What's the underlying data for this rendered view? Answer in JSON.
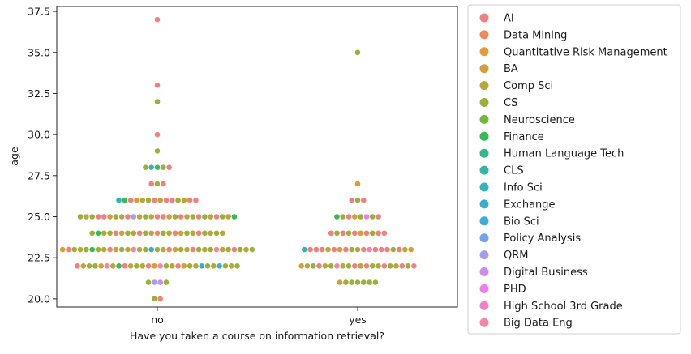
{
  "chart_data": {
    "type": "scatter",
    "subtype": "swarm",
    "xlabel": "Have you taken a course on information retrieval?",
    "ylabel": "age",
    "categories": [
      "no",
      "yes"
    ],
    "ylim": [
      19.5,
      37.8
    ],
    "yticks": [
      20.0,
      22.5,
      25.0,
      27.5,
      30.0,
      32.5,
      35.0,
      37.5
    ],
    "ytick_labels": [
      "20.0",
      "22.5",
      "25.0",
      "27.5",
      "30.0",
      "32.5",
      "35.0",
      "37.5"
    ],
    "grid": false,
    "legend_placement": "outside-right",
    "hue_levels": [
      {
        "name": "AI",
        "color": "#f0807f"
      },
      {
        "name": "Data Mining",
        "color": "#ee8a5f"
      },
      {
        "name": "Quantitative Risk Management",
        "color": "#e39a3c"
      },
      {
        "name": "BA",
        "color": "#cfa03c"
      },
      {
        "name": "Comp Sci",
        "color": "#b6a83a"
      },
      {
        "name": "CS",
        "color": "#9bb03c"
      },
      {
        "name": "Neuroscience",
        "color": "#72b83e"
      },
      {
        "name": "Finance",
        "color": "#37b957"
      },
      {
        "name": "Human Language Tech",
        "color": "#36b58e"
      },
      {
        "name": "CLS",
        "color": "#35b3a7"
      },
      {
        "name": "Info Sci",
        "color": "#37b1b8"
      },
      {
        "name": "Exchange",
        "color": "#38afc7"
      },
      {
        "name": "Bio Sci",
        "color": "#3eaad8"
      },
      {
        "name": "Policy Analysis",
        "color": "#6fa4ea"
      },
      {
        "name": "QRM",
        "color": "#a79ded"
      },
      {
        "name": "Digital Business",
        "color": "#cb8ceb"
      },
      {
        "name": "PHD",
        "color": "#ec7ee7"
      },
      {
        "name": "High School 3rd Grade",
        "color": "#f181c6"
      },
      {
        "name": "Big Data Eng",
        "color": "#f386a8"
      }
    ],
    "series": [
      {
        "category": "no",
        "points": [
          {
            "y": 20,
            "n": 2,
            "hues": [
              "CS",
              "AI"
            ]
          },
          {
            "y": 21,
            "n": 4,
            "hues": [
              "CS",
              "QRM",
              "Digital Business",
              "CS"
            ]
          },
          {
            "y": 22,
            "n": 28,
            "hues": [
              "AI",
              "Comp Sci",
              "CS",
              "CS",
              "BA",
              "Big Data Eng",
              "Comp Sci",
              "Finance",
              "AI",
              "Comp Sci",
              "CS",
              "Comp Sci",
              "AI",
              "BA",
              "Big Data Eng",
              "CS",
              "Comp Sci",
              "AI",
              "BA",
              "CS",
              "Comp Sci",
              "Exchange",
              "CS",
              "Comp Sci",
              "Bio Sci",
              "CS",
              "Comp Sci",
              "CS"
            ]
          },
          {
            "y": 23,
            "n": 33,
            "hues": [
              "BA",
              "AI",
              "CS",
              "Comp Sci",
              "CS",
              "Finance",
              "CS",
              "Comp Sci",
              "AI",
              "BA",
              "CS",
              "Comp Sci",
              "Big Data Eng",
              "Comp Sci",
              "CS",
              "Info Sci",
              "CS",
              "Comp Sci",
              "AI",
              "BA",
              "CS",
              "Comp Sci",
              "AI",
              "CS",
              "Comp Sci",
              "CS",
              "Big Data Eng",
              "Comp Sci",
              "CS",
              "AI",
              "CS",
              "Comp Sci",
              "CS"
            ]
          },
          {
            "y": 24,
            "n": 23,
            "hues": [
              "CS",
              "Finance",
              "Comp Sci",
              "CS",
              "AI",
              "BA",
              "CS",
              "Comp Sci",
              "AI",
              "CS",
              "Comp Sci",
              "Data Mining",
              "CS",
              "Comp Sci",
              "AI",
              "BA",
              "CS",
              "Comp Sci",
              "AI",
              "CS",
              "Comp Sci",
              "CS",
              "Comp Sci"
            ]
          },
          {
            "y": 25,
            "n": 27,
            "hues": [
              "CS",
              "Comp Sci",
              "CS",
              "AI",
              "AI",
              "BA",
              "CS",
              "Comp Sci",
              "AI",
              "QRM",
              "Comp Sci",
              "CS",
              "Comp Sci",
              "AI",
              "AI",
              "BA",
              "CS",
              "AI",
              "Comp Sci",
              "CS",
              "AI",
              "CS",
              "Comp Sci",
              "AI",
              "CS",
              "Comp Sci",
              "Finance"
            ]
          },
          {
            "y": 26,
            "n": 14,
            "hues": [
              "Info Sci",
              "Finance",
              "AI",
              "BA",
              "Comp Sci",
              "CS",
              "AI",
              "Comp Sci",
              "AI",
              "AI",
              "CS",
              "Comp Sci",
              "AI",
              "AI"
            ]
          },
          {
            "y": 27,
            "n": 3,
            "hues": [
              "AI",
              "CS",
              "AI"
            ]
          },
          {
            "y": 28,
            "n": 5,
            "hues": [
              "CS",
              "Info Sci",
              "Finance",
              "CS",
              "AI"
            ]
          },
          {
            "y": 29,
            "n": 1,
            "hues": [
              "CS"
            ]
          },
          {
            "y": 30,
            "n": 1,
            "hues": [
              "AI"
            ]
          },
          {
            "y": 32,
            "n": 1,
            "hues": [
              "CS"
            ]
          },
          {
            "y": 33,
            "n": 1,
            "hues": [
              "AI"
            ]
          },
          {
            "y": 37,
            "n": 1,
            "hues": [
              "AI"
            ]
          }
        ]
      },
      {
        "category": "yes",
        "points": [
          {
            "y": 21,
            "n": 7,
            "hues": [
              "BA",
              "CS",
              "CS",
              "CS",
              "CS",
              "CS",
              "CS"
            ]
          },
          {
            "y": 22,
            "n": 20,
            "hues": [
              "BA",
              "Comp Sci",
              "CS",
              "AI",
              "Comp Sci",
              "CS",
              "Big Data Eng",
              "Comp Sci",
              "CS",
              "AI",
              "Comp Sci",
              "AI",
              "CS",
              "Comp Sci",
              "AI",
              "CS",
              "Comp Sci",
              "AI",
              "CS",
              "AI"
            ]
          },
          {
            "y": 23,
            "n": 19,
            "hues": [
              "Info Sci",
              "AI",
              "AI",
              "AI",
              "Comp Sci",
              "AI",
              "BA",
              "AI",
              "CS",
              "Comp Sci",
              "AI",
              "Big Data Eng",
              "AI",
              "AI",
              "AI",
              "CS",
              "AI",
              "Comp Sci",
              "BA"
            ]
          },
          {
            "y": 24,
            "n": 10,
            "hues": [
              "AI",
              "CS",
              "AI",
              "CS",
              "AI",
              "BA",
              "AI",
              "CS",
              "AI",
              "AI"
            ]
          },
          {
            "y": 25,
            "n": 8,
            "hues": [
              "Finance",
              "CS",
              "AI",
              "BA",
              "CS",
              "PHD",
              "CS",
              "AI"
            ]
          },
          {
            "y": 26,
            "n": 3,
            "hues": [
              "AI",
              "CS",
              "AI"
            ]
          },
          {
            "y": 27,
            "n": 1,
            "hues": [
              "BA"
            ]
          },
          {
            "y": 35,
            "n": 1,
            "hues": [
              "CS"
            ]
          }
        ]
      }
    ]
  }
}
